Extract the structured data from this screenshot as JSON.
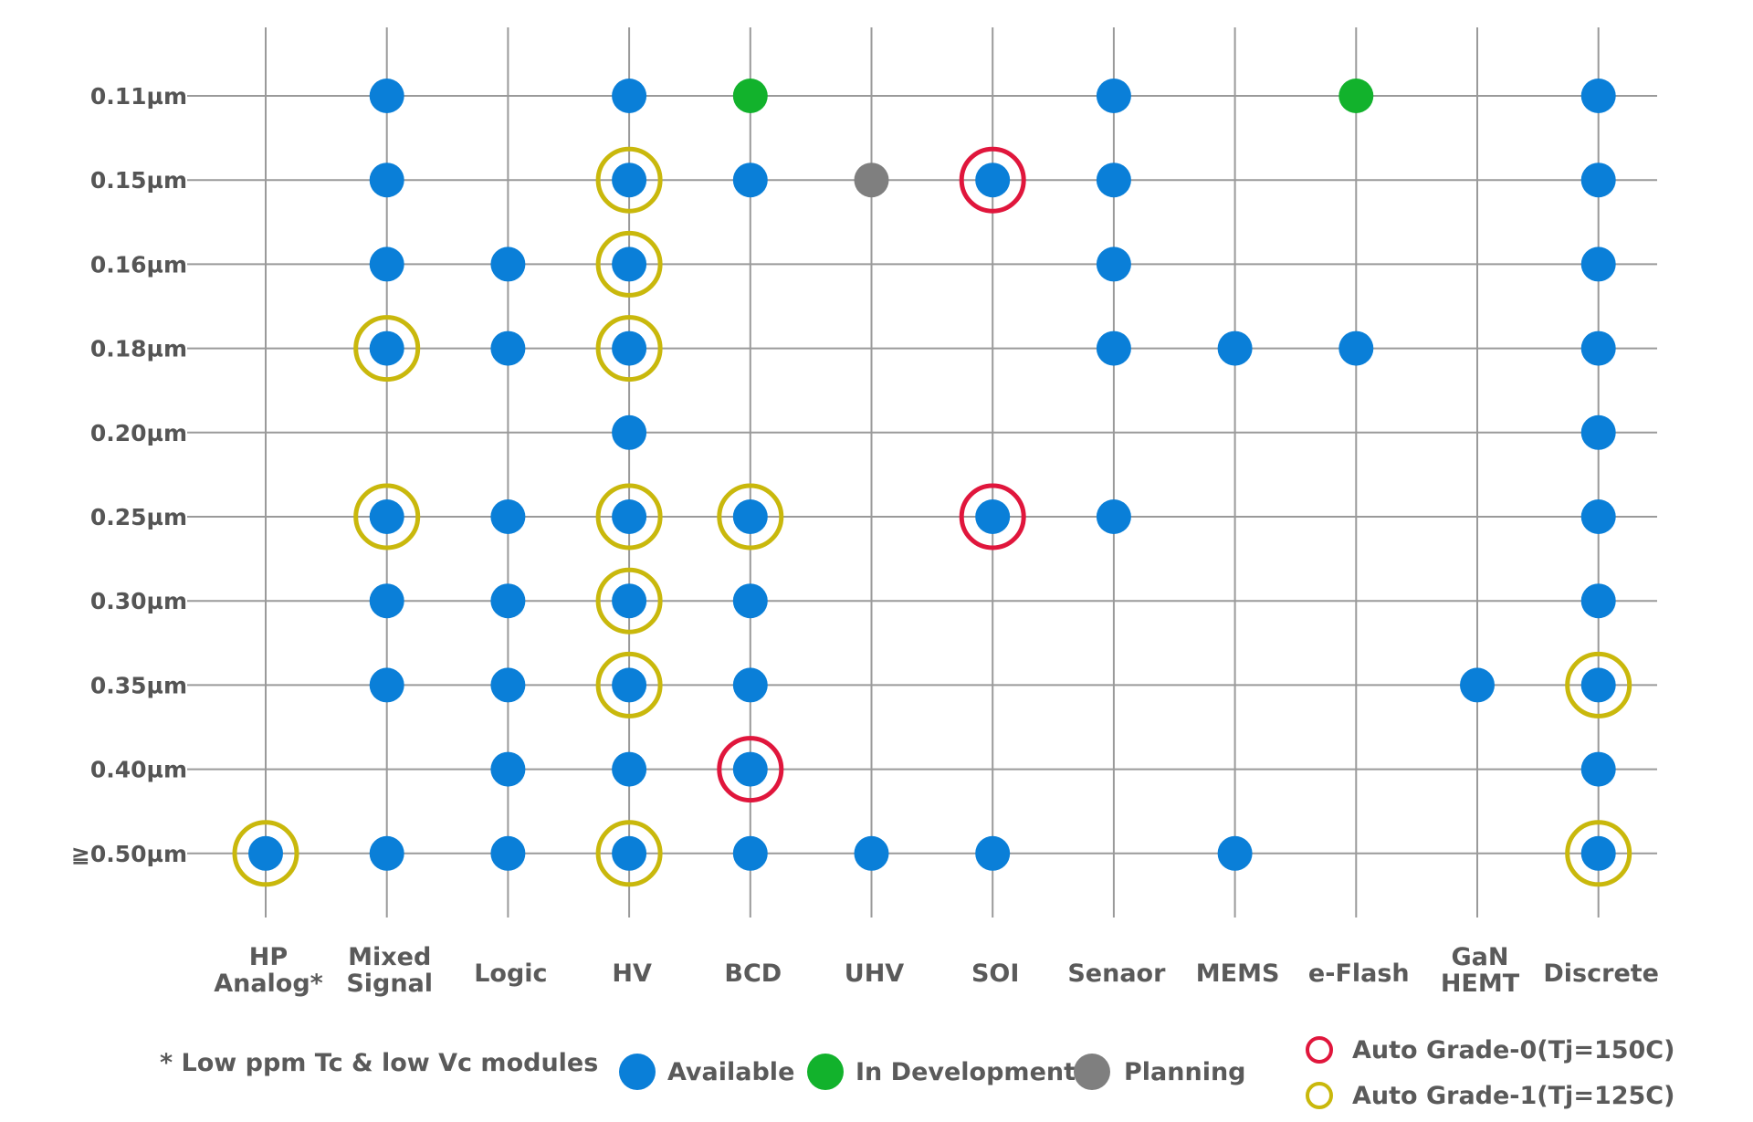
{
  "chart_data": {
    "type": "scatter",
    "title": "",
    "colors": {
      "available": "#0a7fd8",
      "in_development": "#12b22c",
      "planning": "#7f7f7f",
      "auto_grade_0": "#e0163c",
      "auto_grade_1": "#c9b80c",
      "grid": "#9a9a9a",
      "text": "#555555"
    },
    "categories": [
      {
        "id": "hp-analog",
        "label": [
          "HP",
          "Analog*"
        ]
      },
      {
        "id": "mixed-signal",
        "label": [
          "Mixed",
          "Signal"
        ]
      },
      {
        "id": "logic",
        "label": [
          "Logic"
        ]
      },
      {
        "id": "hv",
        "label": [
          "HV"
        ]
      },
      {
        "id": "bcd",
        "label": [
          "BCD"
        ]
      },
      {
        "id": "uhv",
        "label": [
          "UHV"
        ]
      },
      {
        "id": "soi",
        "label": [
          "SOI"
        ]
      },
      {
        "id": "senaor",
        "label": [
          "Senaor"
        ]
      },
      {
        "id": "mems",
        "label": [
          "MEMS"
        ]
      },
      {
        "id": "e-flash",
        "label": [
          "e-Flash"
        ]
      },
      {
        "id": "gan-hemt",
        "label": [
          "GaN",
          "HEMT"
        ]
      },
      {
        "id": "discrete",
        "label": [
          "Discrete"
        ]
      }
    ],
    "nodes": [
      "0.11µm",
      "0.15µm",
      "0.16µm",
      "0.18µm",
      "0.20µm",
      "0.25µm",
      "0.30µm",
      "0.35µm",
      "0.40µm",
      "≧0.50µm"
    ],
    "points": [
      {
        "category": "mixed-signal",
        "node": "0.11µm",
        "status": "available"
      },
      {
        "category": "hv",
        "node": "0.11µm",
        "status": "available"
      },
      {
        "category": "bcd",
        "node": "0.11µm",
        "status": "in_development"
      },
      {
        "category": "senaor",
        "node": "0.11µm",
        "status": "available"
      },
      {
        "category": "e-flash",
        "node": "0.11µm",
        "status": "in_development"
      },
      {
        "category": "discrete",
        "node": "0.11µm",
        "status": "available"
      },
      {
        "category": "mixed-signal",
        "node": "0.15µm",
        "status": "available"
      },
      {
        "category": "hv",
        "node": "0.15µm",
        "status": "available",
        "auto_grade": 1
      },
      {
        "category": "bcd",
        "node": "0.15µm",
        "status": "available"
      },
      {
        "category": "uhv",
        "node": "0.15µm",
        "status": "planning"
      },
      {
        "category": "soi",
        "node": "0.15µm",
        "status": "available",
        "auto_grade": 0
      },
      {
        "category": "senaor",
        "node": "0.15µm",
        "status": "available"
      },
      {
        "category": "discrete",
        "node": "0.15µm",
        "status": "available"
      },
      {
        "category": "mixed-signal",
        "node": "0.16µm",
        "status": "available"
      },
      {
        "category": "logic",
        "node": "0.16µm",
        "status": "available"
      },
      {
        "category": "hv",
        "node": "0.16µm",
        "status": "available",
        "auto_grade": 1
      },
      {
        "category": "senaor",
        "node": "0.16µm",
        "status": "available"
      },
      {
        "category": "discrete",
        "node": "0.16µm",
        "status": "available"
      },
      {
        "category": "mixed-signal",
        "node": "0.18µm",
        "status": "available",
        "auto_grade": 1
      },
      {
        "category": "logic",
        "node": "0.18µm",
        "status": "available"
      },
      {
        "category": "hv",
        "node": "0.18µm",
        "status": "available",
        "auto_grade": 1
      },
      {
        "category": "senaor",
        "node": "0.18µm",
        "status": "available"
      },
      {
        "category": "mems",
        "node": "0.18µm",
        "status": "available"
      },
      {
        "category": "e-flash",
        "node": "0.18µm",
        "status": "available"
      },
      {
        "category": "discrete",
        "node": "0.18µm",
        "status": "available"
      },
      {
        "category": "hv",
        "node": "0.20µm",
        "status": "available"
      },
      {
        "category": "discrete",
        "node": "0.20µm",
        "status": "available"
      },
      {
        "category": "mixed-signal",
        "node": "0.25µm",
        "status": "available",
        "auto_grade": 1
      },
      {
        "category": "logic",
        "node": "0.25µm",
        "status": "available"
      },
      {
        "category": "hv",
        "node": "0.25µm",
        "status": "available",
        "auto_grade": 1
      },
      {
        "category": "bcd",
        "node": "0.25µm",
        "status": "available",
        "auto_grade": 1
      },
      {
        "category": "soi",
        "node": "0.25µm",
        "status": "available",
        "auto_grade": 0
      },
      {
        "category": "senaor",
        "node": "0.25µm",
        "status": "available"
      },
      {
        "category": "discrete",
        "node": "0.25µm",
        "status": "available"
      },
      {
        "category": "mixed-signal",
        "node": "0.30µm",
        "status": "available"
      },
      {
        "category": "logic",
        "node": "0.30µm",
        "status": "available"
      },
      {
        "category": "hv",
        "node": "0.30µm",
        "status": "available",
        "auto_grade": 1
      },
      {
        "category": "bcd",
        "node": "0.30µm",
        "status": "available"
      },
      {
        "category": "discrete",
        "node": "0.30µm",
        "status": "available"
      },
      {
        "category": "mixed-signal",
        "node": "0.35µm",
        "status": "available"
      },
      {
        "category": "logic",
        "node": "0.35µm",
        "status": "available"
      },
      {
        "category": "hv",
        "node": "0.35µm",
        "status": "available",
        "auto_grade": 1
      },
      {
        "category": "bcd",
        "node": "0.35µm",
        "status": "available"
      },
      {
        "category": "gan-hemt",
        "node": "0.35µm",
        "status": "available"
      },
      {
        "category": "discrete",
        "node": "0.35µm",
        "status": "available",
        "auto_grade": 1
      },
      {
        "category": "logic",
        "node": "0.40µm",
        "status": "available"
      },
      {
        "category": "hv",
        "node": "0.40µm",
        "status": "available"
      },
      {
        "category": "bcd",
        "node": "0.40µm",
        "status": "available",
        "auto_grade": 0
      },
      {
        "category": "discrete",
        "node": "0.40µm",
        "status": "available"
      },
      {
        "category": "hp-analog",
        "node": "≧0.50µm",
        "status": "available",
        "auto_grade": 1
      },
      {
        "category": "mixed-signal",
        "node": "≧0.50µm",
        "status": "available"
      },
      {
        "category": "logic",
        "node": "≧0.50µm",
        "status": "available"
      },
      {
        "category": "hv",
        "node": "≧0.50µm",
        "status": "available",
        "auto_grade": 1
      },
      {
        "category": "bcd",
        "node": "≧0.50µm",
        "status": "available"
      },
      {
        "category": "uhv",
        "node": "≧0.50µm",
        "status": "available"
      },
      {
        "category": "soi",
        "node": "≧0.50µm",
        "status": "available"
      },
      {
        "category": "mems",
        "node": "≧0.50µm",
        "status": "available"
      },
      {
        "category": "discrete",
        "node": "≧0.50µm",
        "status": "available",
        "auto_grade": 1
      }
    ],
    "legend": {
      "footnote": "* Low ppm Tc & low Vc modules",
      "available": "Available",
      "in_development": "In Development",
      "planning": "Planning",
      "auto_grade_0": "Auto Grade-0(Tj=150C)",
      "auto_grade_1": "Auto Grade-1(Tj=125C)"
    }
  }
}
